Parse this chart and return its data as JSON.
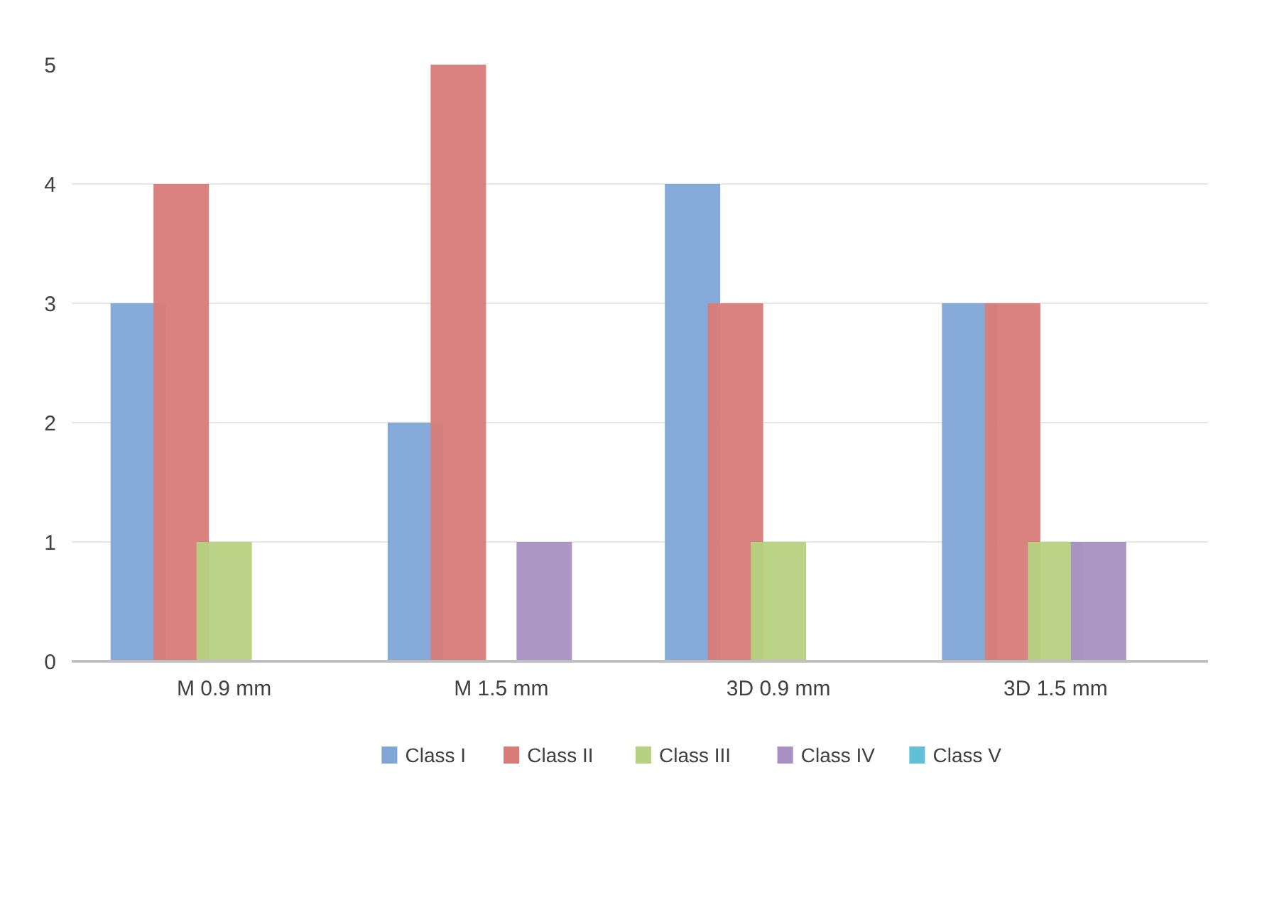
{
  "chart_data": {
    "type": "bar",
    "categories": [
      "M 0.9 mm",
      "M 1.5 mm",
      "3D 0.9 mm",
      "3D 1.5 mm"
    ],
    "series": [
      {
        "name": "Class I",
        "color": "#7fa6d6",
        "values": [
          3,
          2,
          4,
          3
        ]
      },
      {
        "name": "Class II",
        "color": "#d87b79",
        "values": [
          4,
          5,
          3,
          3
        ]
      },
      {
        "name": "Class III",
        "color": "#b6d17f",
        "values": [
          1,
          0,
          1,
          1
        ]
      },
      {
        "name": "Class IV",
        "color": "#a890c2",
        "values": [
          0,
          1,
          0,
          1
        ]
      },
      {
        "name": "Class V",
        "color": "#5fc0d8",
        "values": [
          0,
          0,
          0,
          0
        ]
      }
    ],
    "ylim": [
      0,
      5
    ],
    "yticks": [
      0,
      1,
      2,
      3,
      4,
      5
    ],
    "grid": "y",
    "legend": "bottom"
  }
}
